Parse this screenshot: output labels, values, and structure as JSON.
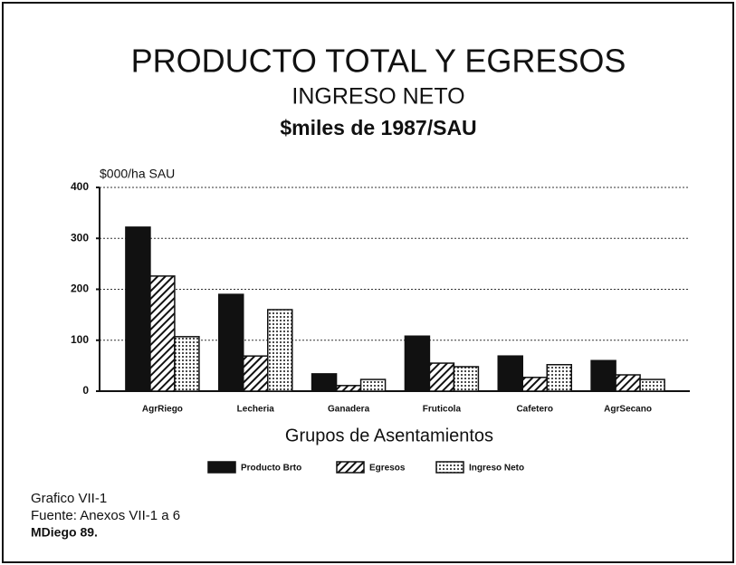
{
  "chart_data": {
    "type": "bar",
    "title": "PRODUCTO TOTAL Y EGRESOS",
    "subtitle": "INGRESO NETO",
    "units": "$miles de 1987/SAU",
    "y_label": "$000/ha SAU",
    "x_label": "Grupos de Asentamientos",
    "categories": [
      "AgrRiego",
      "Lecheria",
      "Ganadera",
      "Fruticola",
      "Cafetero",
      "AgrSecano"
    ],
    "series": [
      {
        "name": "Producto Brto",
        "color": "#111111",
        "pattern": "solid",
        "values": [
          322,
          190,
          34,
          108,
          69,
          60
        ]
      },
      {
        "name": "Egresos",
        "color": "#111111",
        "pattern": "hatch",
        "values": [
          226,
          69,
          11,
          55,
          27,
          32
        ]
      },
      {
        "name": "Ingreso Neto",
        "color": "#111111",
        "pattern": "dots",
        "values": [
          107,
          160,
          23,
          48,
          52,
          23
        ]
      }
    ],
    "ylim": [
      0,
      400
    ],
    "yticks": [
      0,
      100,
      200,
      300,
      400
    ],
    "grid": true,
    "notes": [
      "Grafico VII-1",
      "Fuente: Anexos VII-1 a 6",
      "MDiego 89."
    ]
  }
}
